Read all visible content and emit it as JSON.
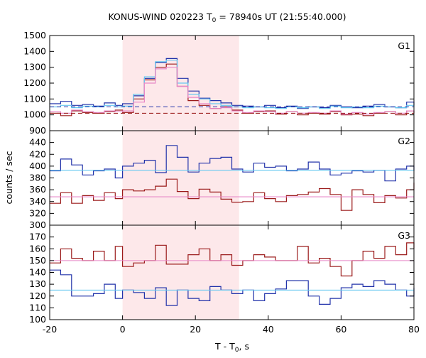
{
  "chart_data": {
    "type": "line",
    "title": {
      "main": "KONUS-WIND 020223 T",
      "sub": "0",
      "rest": " = 78940s UT (21:55:40.000)"
    },
    "xlabel": {
      "main": "T - T",
      "sub": "0",
      "rest": ", s"
    },
    "ylabel": "counts / sec",
    "xlim": [
      -20,
      80
    ],
    "xticks": [
      -20,
      0,
      20,
      40,
      60,
      80
    ],
    "shaded_interval": [
      0,
      32
    ],
    "colors": {
      "shade": "#fde8ea",
      "blue": "#2233aa",
      "darkred": "#9b1b1b",
      "lightblue": "#66c8f0",
      "pink": "#e888c8"
    },
    "panels": [
      {
        "label": "G1",
        "ylim": [
          900,
          1500
        ],
        "yticks": [
          900,
          1000,
          1100,
          1200,
          1300,
          1400,
          1500
        ],
        "series": [
          {
            "color": "blue",
            "style": "step",
            "x": [
              -20,
              -17,
              -14,
              -11,
              -8,
              -5,
              -2,
              0,
              3,
              6,
              9,
              12,
              15,
              18,
              21,
              24,
              27,
              30,
              33,
              36,
              39,
              42,
              45,
              48,
              51,
              54,
              57,
              60,
              63,
              66,
              69,
              72,
              75,
              78,
              80
            ],
            "values": [
              1070,
              1085,
              1060,
              1065,
              1055,
              1075,
              1060,
              1070,
              1120,
              1230,
              1330,
              1355,
              1230,
              1150,
              1105,
              1090,
              1075,
              1060,
              1055,
              1050,
              1060,
              1045,
              1055,
              1040,
              1050,
              1045,
              1060,
              1050,
              1045,
              1055,
              1065,
              1050,
              1045,
              1080,
              1060
            ]
          },
          {
            "color": "darkred",
            "style": "step",
            "x": [
              -20,
              -17,
              -14,
              -11,
              -8,
              -5,
              -2,
              0,
              3,
              6,
              9,
              12,
              15,
              18,
              21,
              24,
              27,
              30,
              33,
              36,
              39,
              42,
              45,
              48,
              51,
              54,
              57,
              60,
              63,
              66,
              69,
              72,
              75,
              78,
              80
            ],
            "values": [
              1010,
              995,
              1025,
              1015,
              1010,
              1020,
              1030,
              1015,
              1100,
              1220,
              1300,
              1320,
              1180,
              1090,
              1060,
              1040,
              1050,
              1030,
              1010,
              1020,
              1025,
              1005,
              1020,
              1000,
              1010,
              1005,
              1020,
              1000,
              1005,
              995,
              1010,
              1020,
              1000,
              1025,
              1010
            ]
          },
          {
            "color": "lightblue",
            "style": "step",
            "x": [
              -20,
              -17,
              -14,
              -11,
              -8,
              -5,
              -2,
              0,
              3,
              6,
              9,
              12,
              15,
              18,
              21,
              24,
              27,
              30,
              33,
              36,
              39,
              42,
              45,
              48,
              51,
              54,
              57,
              60,
              63,
              66,
              69,
              72,
              75,
              78,
              80
            ],
            "values": [
              1050,
              1060,
              1045,
              1055,
              1050,
              1060,
              1050,
              1055,
              1130,
              1240,
              1335,
              1345,
              1200,
              1130,
              1100,
              1070,
              1060,
              1050,
              1045,
              1050,
              1045,
              1040,
              1050,
              1045,
              1050,
              1040,
              1055,
              1045,
              1050,
              1045,
              1055,
              1050,
              1045,
              1060,
              1050
            ]
          },
          {
            "color": "pink",
            "style": "step",
            "x": [
              -20,
              -17,
              -14,
              -11,
              -8,
              -5,
              -2,
              0,
              3,
              6,
              9,
              12,
              15,
              18,
              21,
              24,
              27,
              30,
              33,
              36,
              39,
              42,
              45,
              48,
              51,
              54,
              57,
              60,
              63,
              66,
              69,
              72,
              75,
              78,
              80
            ],
            "values": [
              1020,
              1010,
              1030,
              1020,
              1015,
              1025,
              1020,
              1025,
              1080,
              1200,
              1290,
              1300,
              1180,
              1110,
              1070,
              1040,
              1045,
              1025,
              1015,
              1025,
              1020,
              1010,
              1020,
              1010,
              1015,
              1010,
              1025,
              1005,
              1015,
              1005,
              1015,
              1020,
              1010,
              1025,
              1015
            ]
          },
          {
            "color": "blue",
            "style": "dashed",
            "x": [
              -20,
              80
            ],
            "values": [
              1050,
              1050
            ]
          },
          {
            "color": "darkred",
            "style": "dashed",
            "x": [
              -20,
              80
            ],
            "values": [
              1010,
              1010
            ]
          }
        ]
      },
      {
        "label": "G2",
        "ylim": [
          300,
          460
        ],
        "yticks": [
          300,
          320,
          340,
          360,
          380,
          400,
          420,
          440
        ],
        "series": [
          {
            "color": "blue",
            "style": "step",
            "x": [
              -20,
              -17,
              -14,
              -11,
              -8,
              -5,
              -2,
              0,
              3,
              6,
              9,
              12,
              15,
              18,
              21,
              24,
              27,
              30,
              33,
              36,
              39,
              42,
              45,
              48,
              51,
              54,
              57,
              60,
              63,
              66,
              69,
              72,
              75,
              78,
              80
            ],
            "values": [
              392,
              412,
              402,
              385,
              392,
              395,
              380,
              400,
              405,
              410,
              389,
              435,
              415,
              390,
              405,
              413,
              415,
              395,
              390,
              405,
              398,
              400,
              392,
              395,
              407,
              395,
              385,
              388,
              392,
              390,
              393,
              375,
              395,
              400,
              392
            ]
          },
          {
            "color": "darkred",
            "style": "step",
            "x": [
              -20,
              -17,
              -14,
              -11,
              -8,
              -5,
              -2,
              0,
              3,
              6,
              9,
              12,
              15,
              18,
              21,
              24,
              27,
              30,
              33,
              36,
              39,
              42,
              45,
              48,
              51,
              54,
              57,
              60,
              63,
              66,
              69,
              72,
              75,
              78,
              80
            ],
            "values": [
              337,
              355,
              337,
              350,
              342,
              355,
              345,
              360,
              358,
              360,
              366,
              378,
              357,
              345,
              361,
              356,
              344,
              339,
              340,
              355,
              345,
              340,
              350,
              352,
              356,
              362,
              352,
              325,
              360,
              352,
              338,
              350,
              346,
              360,
              372
            ]
          },
          {
            "color": "lightblue",
            "style": "line",
            "x": [
              -20,
              80
            ],
            "values": [
              393,
              393
            ]
          },
          {
            "color": "pink",
            "style": "line",
            "x": [
              -20,
              80
            ],
            "values": [
              348,
              348
            ]
          }
        ]
      },
      {
        "label": "G3",
        "ylim": [
          100,
          180
        ],
        "yticks": [
          100,
          110,
          120,
          130,
          140,
          150,
          160,
          170
        ],
        "series": [
          {
            "color": "darkred",
            "style": "step",
            "x": [
              -20,
              -17,
              -14,
              -11,
              -8,
              -5,
              -2,
              0,
              3,
              6,
              9,
              12,
              15,
              18,
              21,
              24,
              27,
              30,
              33,
              36,
              39,
              42,
              45,
              48,
              51,
              54,
              57,
              60,
              63,
              66,
              69,
              72,
              75,
              78,
              80
            ],
            "values": [
              148,
              160,
              152,
              150,
              158,
              150,
              162,
              145,
              148,
              150,
              163,
              147,
              147,
              155,
              160,
              150,
              155,
              146,
              150,
              155,
              153,
              150,
              150,
              162,
              148,
              152,
              145,
              137,
              150,
              158,
              152,
              162,
              155,
              165,
              160
            ]
          },
          {
            "color": "blue",
            "style": "step",
            "x": [
              -20,
              -17,
              -14,
              -11,
              -8,
              -5,
              -2,
              0,
              3,
              6,
              9,
              12,
              15,
              18,
              21,
              24,
              27,
              30,
              33,
              36,
              39,
              42,
              45,
              48,
              51,
              54,
              57,
              60,
              63,
              66,
              69,
              72,
              75,
              78,
              80
            ],
            "values": [
              142,
              138,
              120,
              120,
              122,
              130,
              118,
              125,
              123,
              118,
              127,
              112,
              125,
              118,
              116,
              128,
              125,
              122,
              125,
              116,
              122,
              126,
              133,
              133,
              120,
              113,
              118,
              127,
              130,
              128,
              133,
              130,
              125,
              120,
              127
            ]
          },
          {
            "color": "lightblue",
            "style": "line",
            "x": [
              -20,
              80
            ],
            "values": [
              125,
              125
            ]
          },
          {
            "color": "pink",
            "style": "line",
            "x": [
              -20,
              80
            ],
            "values": [
              150,
              150
            ]
          }
        ]
      }
    ]
  }
}
